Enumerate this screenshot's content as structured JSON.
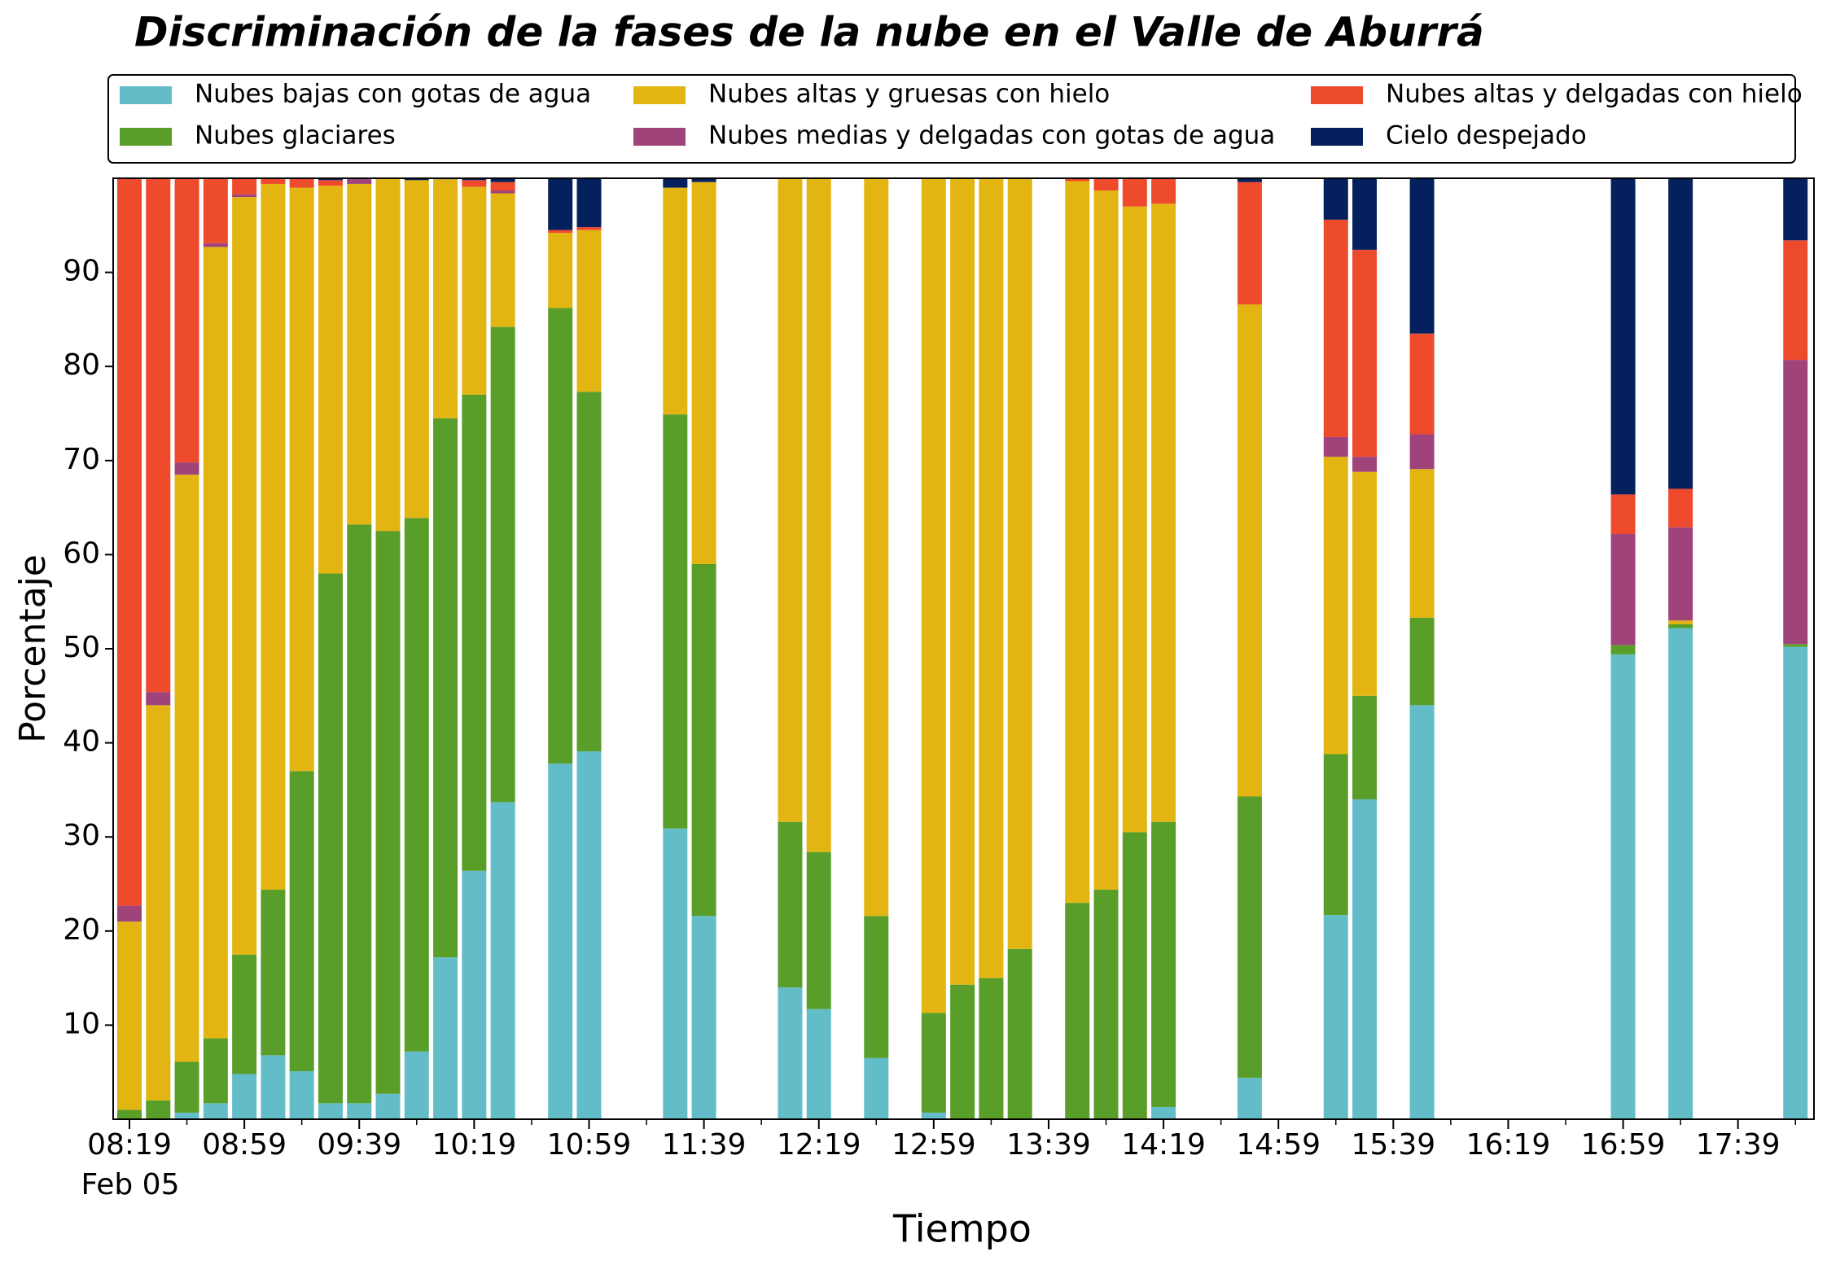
{
  "chart_data": {
    "type": "stacked_bar",
    "title": "Discriminación de la fases de la nube en el Valle de Aburrá",
    "xlabel": "Tiempo",
    "ylabel": "Porcentaje",
    "x_date_label": "Feb 05",
    "categories": [
      "08:19",
      null,
      null,
      null,
      "08:59",
      null,
      null,
      null,
      "09:39",
      null,
      null,
      null,
      "10:19",
      null,
      null,
      null,
      "10:59",
      null,
      null,
      null,
      "11:39",
      null,
      null,
      null,
      "12:19",
      null,
      null,
      null,
      "12:59",
      null,
      null,
      null,
      "13:39",
      null,
      null,
      null,
      "14:19",
      null,
      null,
      null,
      "14:59",
      null,
      null,
      null,
      "15:39",
      null,
      null,
      null,
      "16:19",
      null,
      null,
      null,
      "16:59",
      null,
      null,
      null,
      "17:39",
      null,
      null
    ],
    "series": [
      {
        "name": "Nubes bajas con gotas de agua",
        "color": "#63bdc9",
        "values": [
          0,
          0,
          0.7,
          1.7,
          4.8,
          6.8,
          5.1,
          1.7,
          1.7,
          2.7,
          7.2,
          17.2,
          26.4,
          33.7,
          null,
          37.8,
          39.1,
          null,
          null,
          30.9,
          21.6,
          null,
          null,
          14,
          11.7,
          null,
          6.5,
          null,
          0.7,
          0,
          0,
          0,
          null,
          0,
          0,
          0,
          1.3,
          null,
          null,
          4.4,
          null,
          null,
          21.7,
          34,
          null,
          44,
          null,
          null,
          null,
          null,
          null,
          null,
          49.4,
          null,
          52.2,
          null,
          null,
          null,
          50.2
        ]
      },
      {
        "name": "Nubes glaciares",
        "color": "#5a9e2a",
        "values": [
          1,
          2,
          5.4,
          6.9,
          12.7,
          17.6,
          31.9,
          56.3,
          61.5,
          59.8,
          56.7,
          57.3,
          50.6,
          50.5,
          null,
          48.4,
          38.2,
          null,
          null,
          44,
          37.4,
          null,
          null,
          17.6,
          16.7,
          null,
          15.1,
          null,
          10.6,
          14.3,
          15,
          18.1,
          null,
          23,
          24.4,
          30.5,
          30.3,
          null,
          null,
          29.9,
          null,
          null,
          17.1,
          11,
          null,
          9.3,
          null,
          null,
          null,
          null,
          null,
          null,
          1,
          null,
          0.4,
          null,
          null,
          null,
          0.3
        ]
      },
      {
        "name": "Nubes altas y gruesas con hielo",
        "color": "#e3b512",
        "values": [
          20,
          42,
          62.4,
          84.1,
          80.5,
          75,
          62,
          41.2,
          36.2,
          37.5,
          35.9,
          25.4,
          22.1,
          14.2,
          null,
          8,
          17.2,
          null,
          null,
          24.1,
          40.6,
          null,
          null,
          68.4,
          71.6,
          null,
          78.4,
          null,
          88.7,
          85.7,
          85,
          81.9,
          null,
          76.7,
          74.3,
          66.5,
          65.7,
          null,
          null,
          52.3,
          null,
          null,
          31.6,
          23.8,
          null,
          15.8,
          null,
          null,
          null,
          null,
          null,
          null,
          0,
          null,
          0.4,
          null,
          null,
          null,
          0
        ]
      },
      {
        "name": "Nubes medias y delgadas con gotas de agua",
        "color": "#a0437a",
        "values": [
          1.7,
          1.4,
          1.3,
          0.4,
          0.3,
          0,
          0,
          0,
          0.5,
          0,
          0,
          0,
          0,
          0.3,
          null,
          0,
          0,
          null,
          null,
          0,
          0,
          null,
          null,
          0,
          0,
          null,
          0,
          null,
          0,
          0,
          0,
          0,
          null,
          0,
          0,
          0,
          0,
          null,
          null,
          0,
          null,
          null,
          2.1,
          1.6,
          null,
          3.7,
          null,
          null,
          null,
          null,
          null,
          null,
          11.8,
          null,
          9.9,
          null,
          null,
          null,
          30.2
        ]
      },
      {
        "name": "Nubes altas y delgadas con hielo",
        "color": "#ee4a2c",
        "values": [
          77.3,
          54.6,
          30.2,
          6.9,
          1.7,
          0.6,
          1,
          0.6,
          0,
          0,
          0,
          0,
          0.7,
          0.9,
          null,
          0.3,
          0.3,
          null,
          null,
          0,
          0,
          null,
          null,
          0,
          0,
          null,
          0,
          null,
          0,
          0,
          0,
          0,
          null,
          0.3,
          1.3,
          3,
          2.7,
          null,
          null,
          13,
          null,
          null,
          23.1,
          22,
          null,
          10.7,
          null,
          null,
          null,
          null,
          null,
          null,
          4.2,
          null,
          4.1,
          null,
          null,
          null,
          12.7
        ]
      },
      {
        "name": "Cielo despejado",
        "color": "#04215e",
        "values": [
          0,
          0,
          0,
          0,
          0,
          0,
          0,
          0.2,
          0.1,
          0,
          0.2,
          0.1,
          0.2,
          0.4,
          null,
          5.5,
          5.2,
          null,
          null,
          1,
          0.4,
          null,
          null,
          0,
          0,
          null,
          0,
          null,
          0,
          0,
          0,
          0,
          null,
          0,
          0,
          0,
          0,
          null,
          null,
          0.4,
          null,
          null,
          4.4,
          7.6,
          null,
          16.5,
          null,
          null,
          null,
          null,
          null,
          null,
          33.6,
          null,
          33,
          null,
          null,
          null,
          6.6
        ]
      }
    ],
    "ylim": [
      0,
      100
    ],
    "yticks": [
      10,
      20,
      30,
      40,
      50,
      60,
      70,
      80,
      90
    ],
    "grid": false,
    "legend": "top"
  }
}
